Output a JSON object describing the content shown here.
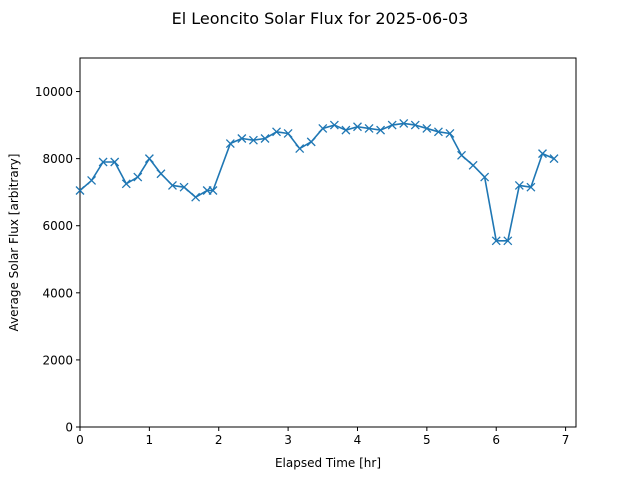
{
  "chart_data": {
    "type": "line",
    "title": "El Leoncito Solar Flux for 2025-06-03",
    "xlabel": "Elapsed Time [hr]",
    "ylabel": "Average Solar Flux [arbitrary]",
    "xlim": [
      0,
      7.15
    ],
    "ylim": [
      0,
      11000
    ],
    "xticks": [
      0,
      1,
      2,
      3,
      4,
      5,
      6,
      7
    ],
    "xtick_labels": [
      "0",
      "1",
      "2",
      "3",
      "4",
      "5",
      "6",
      "7"
    ],
    "yticks": [
      0,
      2000,
      4000,
      6000,
      8000,
      10000
    ],
    "ytick_labels": [
      "0",
      "2000",
      "4000",
      "6000",
      "8000",
      "10000"
    ],
    "grid": false,
    "legend": "none",
    "series": [
      {
        "color": "#1f77b4",
        "marker": "x",
        "x": [
          0.0,
          0.167,
          0.333,
          0.5,
          0.667,
          0.833,
          1.0,
          1.167,
          1.333,
          1.5,
          1.667,
          1.833,
          1.917,
          2.167,
          2.333,
          2.5,
          2.667,
          2.833,
          3.0,
          3.167,
          3.333,
          3.5,
          3.667,
          3.833,
          4.0,
          4.167,
          4.333,
          4.5,
          4.667,
          4.833,
          5.0,
          5.167,
          5.333,
          5.5,
          5.667,
          5.833,
          6.0,
          6.167,
          6.333,
          6.5,
          6.667,
          6.833
        ],
        "y": [
          7050,
          7350,
          7900,
          7900,
          7250,
          7450,
          8000,
          7550,
          7200,
          7150,
          6850,
          7050,
          7050,
          8450,
          8600,
          8550,
          8600,
          8800,
          8750,
          8300,
          8500,
          8900,
          9000,
          8850,
          8950,
          8900,
          8850,
          9000,
          9050,
          9000,
          8900,
          8800,
          8750,
          8100,
          7800,
          7450,
          5550,
          5550,
          7200,
          7150,
          8150,
          8000
        ]
      }
    ]
  }
}
